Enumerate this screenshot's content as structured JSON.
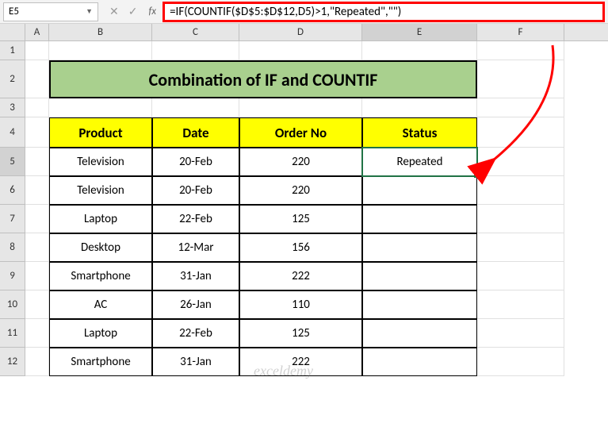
{
  "nameBox": "E5",
  "formula": "=IF(COUNTIF($D$5:$D$12,D5)>1,\"Repeated\",\"\")",
  "title": "Combination of IF and COUNTIF",
  "columns": {
    "labels": [
      "A",
      "B",
      "C",
      "D",
      "E",
      "F"
    ],
    "selected": "E"
  },
  "rows": {
    "heights": {
      "1": 24,
      "2": 48,
      "3": 24,
      "4": 38,
      "5": 36,
      "6": 36,
      "7": 36,
      "8": 36,
      "9": 36,
      "10": 36,
      "11": 36,
      "12": 36
    },
    "selected": 5
  },
  "headers": [
    "Product",
    "Date",
    "Order No",
    "Status"
  ],
  "data": [
    {
      "product": "Television",
      "date": "20-Feb",
      "order": "220",
      "status": "Repeated"
    },
    {
      "product": "Television",
      "date": "20-Feb",
      "order": "220",
      "status": ""
    },
    {
      "product": "Laptop",
      "date": "22-Feb",
      "order": "125",
      "status": ""
    },
    {
      "product": "Desktop",
      "date": "12-Mar",
      "order": "156",
      "status": ""
    },
    {
      "product": "Smartphone",
      "date": "31-Jan",
      "order": "222",
      "status": ""
    },
    {
      "product": "AC",
      "date": "26-Jan",
      "order": "110",
      "status": ""
    },
    {
      "product": "Laptop",
      "date": "22-Feb",
      "order": "125",
      "status": ""
    },
    {
      "product": "Smartphone",
      "date": "31-Jan",
      "order": "222",
      "status": ""
    }
  ],
  "colors": {
    "titleBg": "#a9d08e",
    "headerBg": "#ffff00",
    "highlightBorder": "#ff0000",
    "selection": "#217346",
    "arrow": "#ff0000"
  },
  "watermark": "exceldemy"
}
